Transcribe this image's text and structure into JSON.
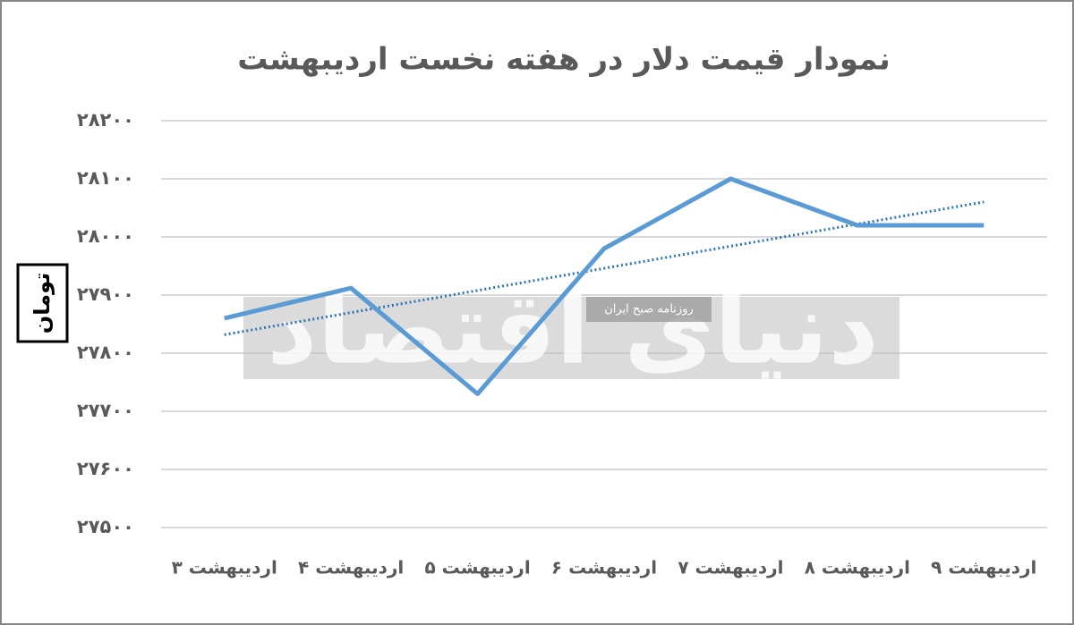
{
  "chart_data": {
    "type": "line",
    "title": "نمودار قیمت دلار در هفته نخست اردیبهشت",
    "y_label": "تومان",
    "categories": [
      "اردیبهشت ۳",
      "اردیبهشت ۴",
      "اردیبهشت ۵",
      "اردیبهشت ۶",
      "اردیبهشت ۷",
      "اردیبهشت ۸",
      "اردیبهشت ۹"
    ],
    "series": [
      {
        "color": "#5b9bd5",
        "values": [
          27860,
          27912,
          27730,
          27980,
          28100,
          28020,
          28020
        ]
      }
    ],
    "trendline": {
      "type": "linear",
      "color": "#2e75b6"
    },
    "ylim": [
      27500,
      28200
    ],
    "yticks": [
      {
        "value": 27500,
        "label": "۲۷۵۰۰"
      },
      {
        "value": 27600,
        "label": "۲۷۶۰۰"
      },
      {
        "value": 27700,
        "label": "۲۷۷۰۰"
      },
      {
        "value": 27800,
        "label": "۲۷۸۰۰"
      },
      {
        "value": 27900,
        "label": "۲۷۹۰۰"
      },
      {
        "value": 28000,
        "label": "۲۸۰۰۰"
      },
      {
        "value": 28100,
        "label": "۲۸۱۰۰"
      },
      {
        "value": 28200,
        "label": "۲۸۲۰۰"
      }
    ],
    "grid": true,
    "annotations": [
      "دنیای اقتصاد",
      "روزنامه صبح ایران"
    ]
  }
}
